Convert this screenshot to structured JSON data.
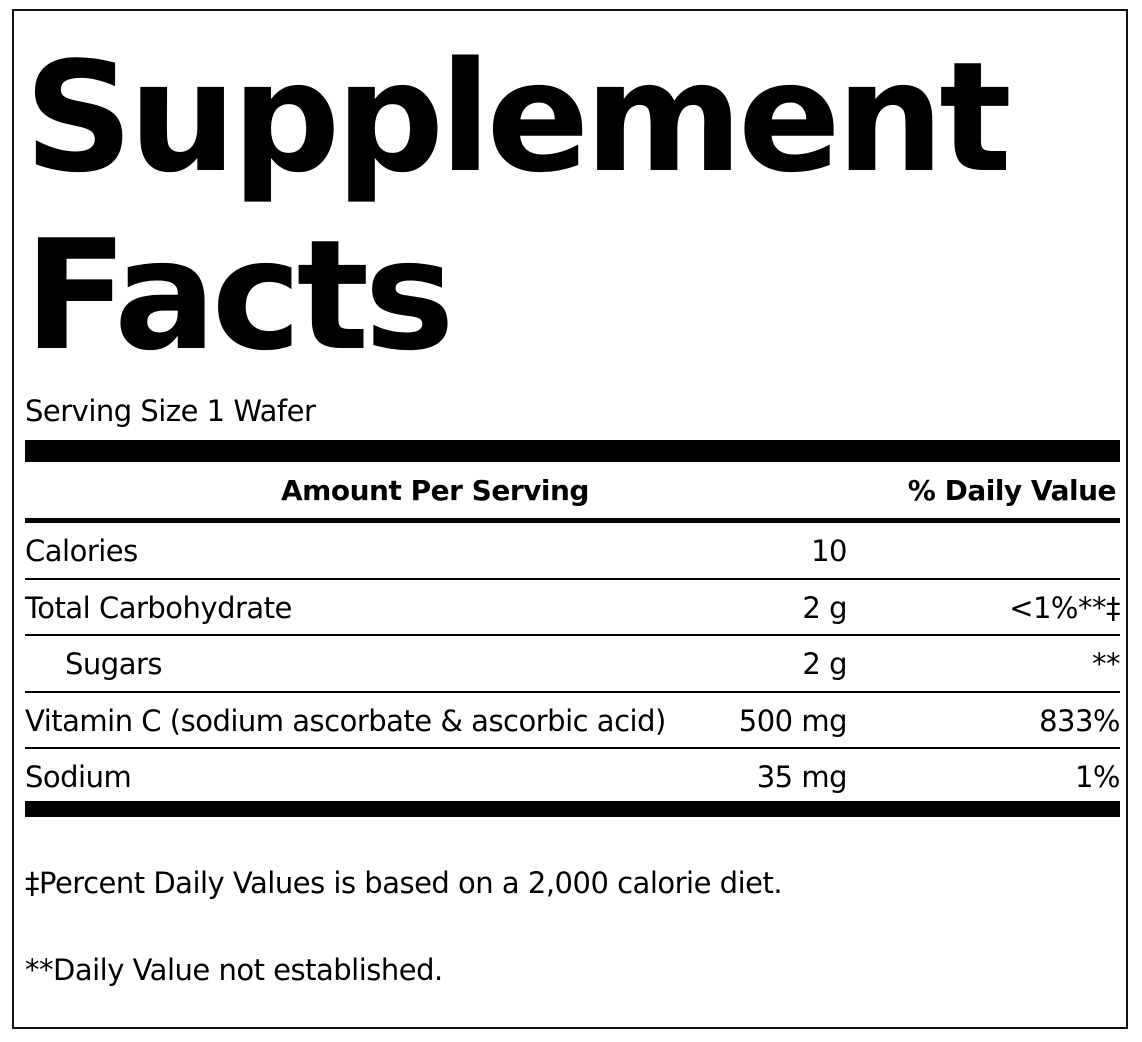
{
  "label": {
    "title_line1": "Supplement",
    "title_line2": "Facts",
    "serving_size": "Serving Size 1 Wafer"
  },
  "table": {
    "header_amount": "Amount Per Serving",
    "header_daily_value": "% Daily Value",
    "rows": [
      {
        "name": "Calories",
        "amount": "10",
        "daily_value": ""
      },
      {
        "name": "Total Carbohydrate",
        "amount": "2 g",
        "daily_value": "<1%**‡"
      },
      {
        "name": "Sugars",
        "amount": "2 g",
        "daily_value": "**"
      },
      {
        "name": "Vitamin C (sodium ascorbate & ascorbic acid)",
        "amount": "500 mg",
        "daily_value": "833%"
      },
      {
        "name": "Sodium",
        "amount": "35 mg",
        "daily_value": "1%"
      }
    ]
  },
  "footnotes": [
    "‡Percent Daily Values is based on a 2,000 calorie diet.",
    "**Daily Value not established."
  ]
}
